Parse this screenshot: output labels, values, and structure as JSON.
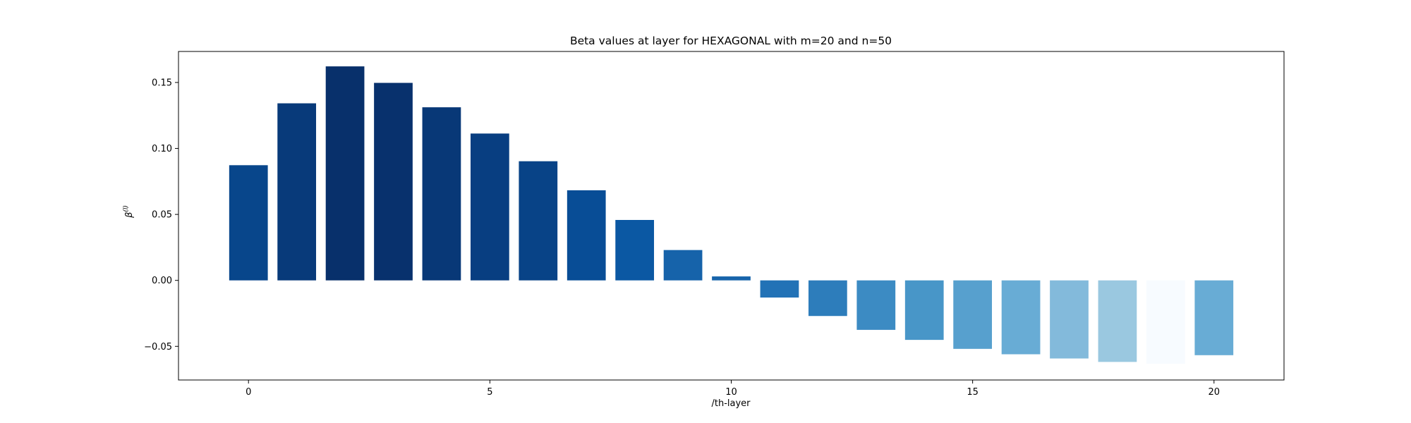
{
  "chart_data": {
    "type": "bar",
    "title": "Beta values at layer for HEXAGONAL with m=20 and n=50",
    "xlabel": "/th-layer",
    "ylabel": "β",
    "ylabel_sup": "(l)",
    "x": [
      0,
      1,
      2,
      3,
      4,
      5,
      6,
      7,
      8,
      9,
      10,
      11,
      12,
      13,
      14,
      15,
      16,
      17,
      18,
      19,
      20
    ],
    "values": [
      0.0873,
      0.1342,
      0.1622,
      0.1497,
      0.1312,
      0.1113,
      0.0903,
      0.0683,
      0.0458,
      0.023,
      0.003,
      -0.013,
      -0.027,
      -0.0375,
      -0.0451,
      -0.0519,
      -0.056,
      -0.0592,
      -0.0618,
      -0.0632,
      -0.0567
    ],
    "colors": [
      "#08468b",
      "#083a7a",
      "#08306b",
      "#08316d",
      "#083877",
      "#083e81",
      "#084387",
      "#084d96",
      "#0b58a3",
      "#1663aa",
      "#1764ab",
      "#2272b6",
      "#2d7dbb",
      "#3c8bc3",
      "#4896c8",
      "#57a0ce",
      "#68acd5",
      "#83badb",
      "#9ac8e0",
      "#f7fbff",
      "#68acd5"
    ],
    "xlim": [
      -1.45,
      21.45
    ],
    "ylim": [
      -0.0755,
      0.1735
    ],
    "xticks": [
      "0",
      "5",
      "10",
      "15",
      "20"
    ],
    "xtick_values": [
      0,
      5,
      10,
      15,
      20
    ],
    "yticks": [
      "−0.05",
      "0.00",
      "0.05",
      "0.10",
      "0.15"
    ],
    "ytick_values": [
      -0.05,
      0,
      0.05,
      0.1,
      0.15
    ],
    "grid": false,
    "legend": "none"
  }
}
